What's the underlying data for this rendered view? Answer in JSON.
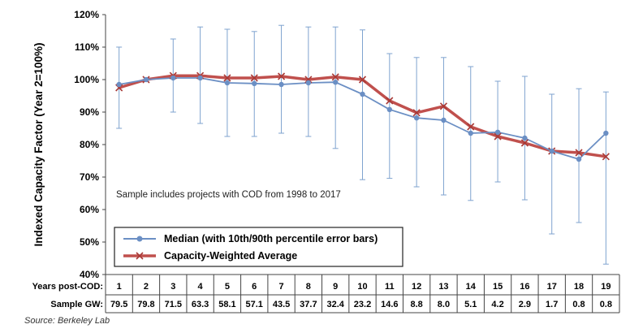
{
  "chart_data": {
    "type": "line",
    "ylabel": "Indexed Capacity Factor (Year 2=100%)",
    "ylim": [
      40,
      120
    ],
    "yticks": [
      40,
      50,
      60,
      70,
      80,
      90,
      100,
      110,
      120
    ],
    "ytick_labels": [
      "40%",
      "50%",
      "60%",
      "70%",
      "80%",
      "90%",
      "100%",
      "110%",
      "120%"
    ],
    "grid": false,
    "legend_position": "bottom-left",
    "annotation": "Sample includes projects with COD from 1998 to 2017",
    "x": [
      1,
      2,
      3,
      4,
      5,
      6,
      7,
      8,
      9,
      10,
      11,
      12,
      13,
      14,
      15,
      16,
      17,
      18,
      19
    ],
    "series": [
      {
        "name": "Median (with 10th/90th percentile error bars)",
        "color": "#6b8fc4",
        "marker": "circle",
        "values": [
          98.5,
          100,
          100.5,
          100.5,
          99,
          98.8,
          98.5,
          99,
          99.2,
          95.5,
          90.8,
          88.2,
          87.5,
          83.5,
          83.8,
          82,
          78,
          75.5,
          83.5
        ],
        "error_low": [
          85,
          100,
          90,
          86.5,
          82.5,
          82.5,
          83.5,
          82.5,
          78.8,
          69.2,
          69.6,
          67,
          64.5,
          62.8,
          68.5,
          63,
          52.5,
          56,
          43.2
        ],
        "error_high": [
          110,
          100,
          112.5,
          116.2,
          115.5,
          114.8,
          116.7,
          116.2,
          116.2,
          115.3,
          108,
          106.8,
          106.8,
          104,
          99.5,
          101,
          95.5,
          97.2,
          96.2
        ]
      },
      {
        "name": "Capacity-Weighted Average",
        "color": "#c0504d",
        "marker": "x",
        "values": [
          97.5,
          100,
          101.2,
          101.2,
          100.5,
          100.5,
          101,
          100,
          100.8,
          100,
          93.5,
          89.8,
          91.8,
          85.5,
          82.5,
          80.5,
          78,
          77.5,
          76.3
        ]
      }
    ],
    "table": {
      "row1_label": "Years post-COD:",
      "row2_label": "Sample GW:",
      "years": [
        "1",
        "2",
        "3",
        "4",
        "5",
        "6",
        "7",
        "8",
        "9",
        "10",
        "11",
        "12",
        "13",
        "14",
        "15",
        "16",
        "17",
        "18",
        "19"
      ],
      "sample_gw": [
        "79.5",
        "79.8",
        "71.5",
        "63.3",
        "58.1",
        "57.1",
        "43.5",
        "37.7",
        "32.4",
        "23.2",
        "14.6",
        "8.8",
        "8.0",
        "5.1",
        "4.2",
        "2.9",
        "1.7",
        "0.8",
        "0.8"
      ]
    },
    "source": "Source: Berkeley Lab"
  }
}
